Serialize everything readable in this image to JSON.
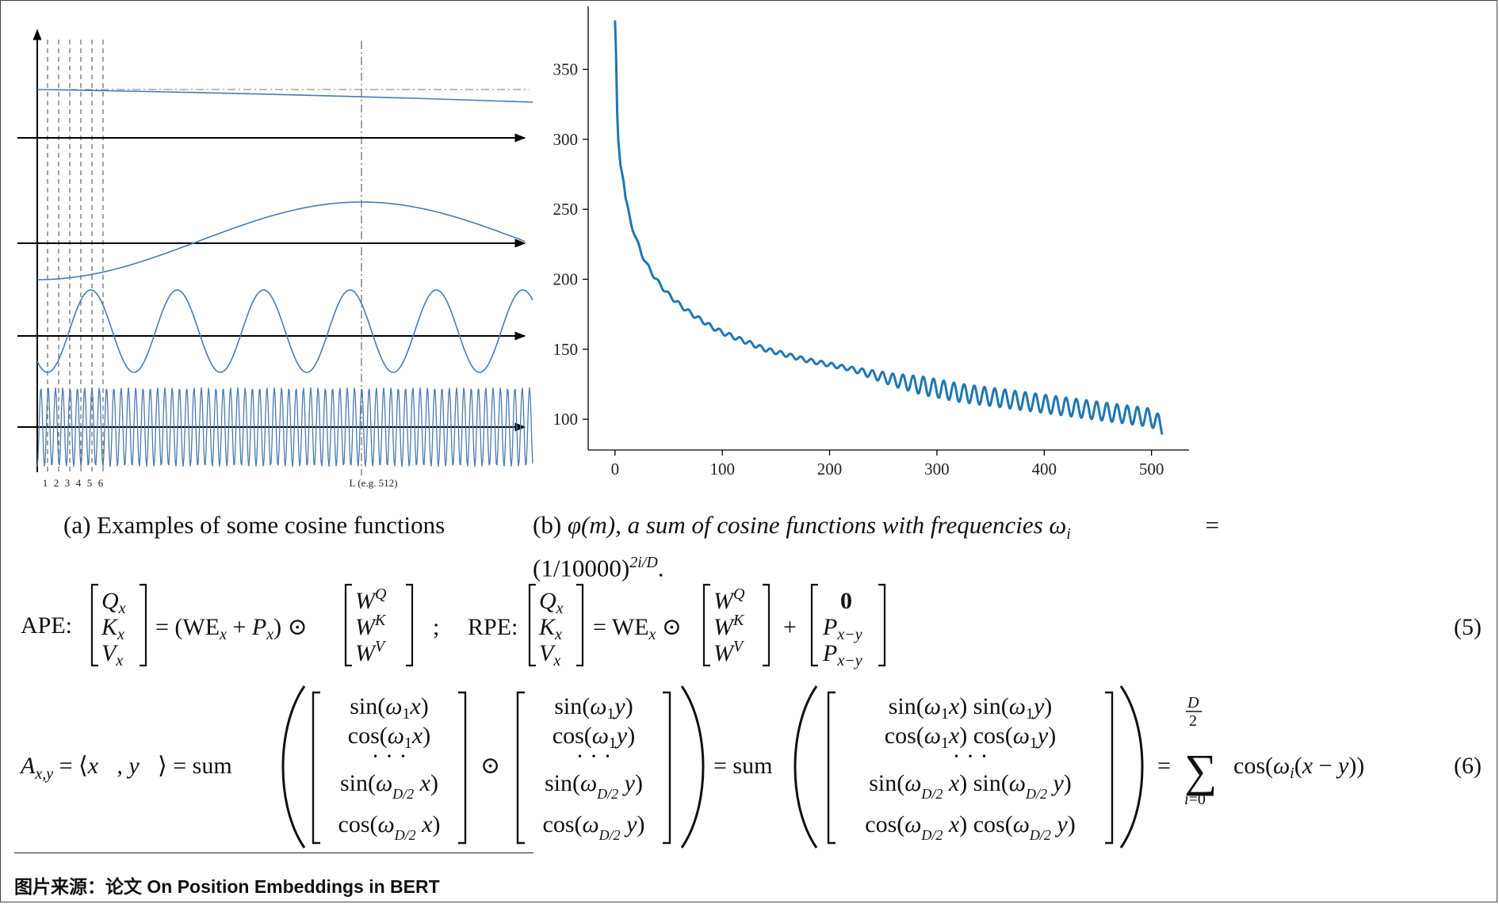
{
  "figure_a": {
    "x_tick_labels": [
      "1",
      "2",
      "3",
      "4",
      "5",
      "6"
    ],
    "x_end_label": "L (e.g. 512)",
    "caption_prefix": "(a)",
    "caption_text": "Examples of some cosine functions"
  },
  "figure_b": {
    "caption_line1_prefix": "(b)",
    "caption_line1_text": "φ(m), a sum of cosine functions with frequencies ω",
    "caption_line1_sub": "i",
    "caption_line1_eq": "=",
    "caption_line2_text": "(1/10000)",
    "caption_line2_sup": "2i/D",
    "caption_line2_end": "."
  },
  "chart_data": {
    "type": "line",
    "title": "",
    "xlabel": "",
    "ylabel": "",
    "xlim": [
      -25,
      535
    ],
    "ylim": [
      78,
      395
    ],
    "x_ticks": [
      0,
      100,
      200,
      300,
      400,
      500
    ],
    "y_ticks": [
      100,
      150,
      200,
      250,
      300,
      350
    ],
    "grid": false,
    "series": [
      {
        "color": "#1f77b4",
        "x": [
          0,
          1,
          2,
          3,
          5,
          8,
          10,
          12,
          15,
          20,
          25,
          30,
          40,
          50,
          60,
          70,
          80,
          90,
          100,
          120,
          140,
          160,
          180,
          200,
          220,
          240,
          260,
          280,
          300,
          320,
          340,
          360,
          380,
          400,
          420,
          440,
          460,
          480,
          500,
          510
        ],
        "y": [
          385,
          360,
          320,
          300,
          282,
          270,
          257,
          250,
          240,
          228,
          218,
          210,
          198,
          189,
          182,
          176,
          171,
          166,
          162,
          156,
          150,
          146,
          142,
          139,
          136,
          132,
          128,
          125,
          122,
          119,
          117,
          115,
          113,
          111,
          109,
          107,
          105,
          103,
          101,
          95
        ]
      }
    ]
  },
  "equations": {
    "eq5": {
      "ape_label": "APE:",
      "rpe_label": "RPE:",
      "separator": ";",
      "number": "(5)"
    },
    "eq6": {
      "number": "(6)"
    }
  },
  "source_credit": "图片来源：论文 On Position Embeddings in BERT"
}
